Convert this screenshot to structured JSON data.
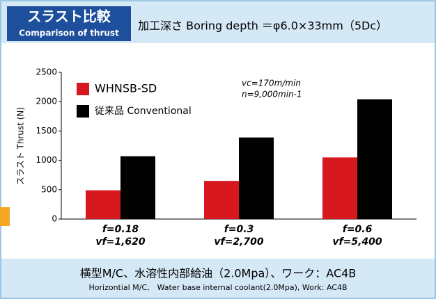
{
  "header": {
    "title": "スラスト比較",
    "title_en": "Comparison of thrust",
    "condition": "加工深さ Boring depth ＝φ6.0×33mm（5Dc）"
  },
  "chart_data": {
    "type": "bar",
    "categories": [
      "f=0.18",
      "f=0.3",
      "f=0.6"
    ],
    "category_sublabels": [
      "vf=1,620",
      "vf=2,700",
      "vf=5,400"
    ],
    "y_label": "スラスト Thrust (N)",
    "series": [
      {
        "name": "WHNSB-SD",
        "color": "#d7181f",
        "values": [
          490,
          650,
          1050
        ]
      },
      {
        "name": "従来品 Conventional",
        "color": "#000000",
        "values": [
          1070,
          1390,
          2040
        ]
      }
    ],
    "annotations": [
      "vc=170m/min",
      "n=9,000min-1"
    ],
    "ylim": [
      0,
      2500
    ],
    "yticks": [
      0,
      500,
      1000,
      1500,
      2000,
      2500
    ],
    "grid": false,
    "legend": "top-left"
  },
  "footer": {
    "line1": "横型M/C、水溶性内部給油（2.0Mpa）、ワーク：AC4B",
    "line2": "Horizontial M/C,　Water base internal coolant(2.0Mpa), Work: AC4B"
  }
}
